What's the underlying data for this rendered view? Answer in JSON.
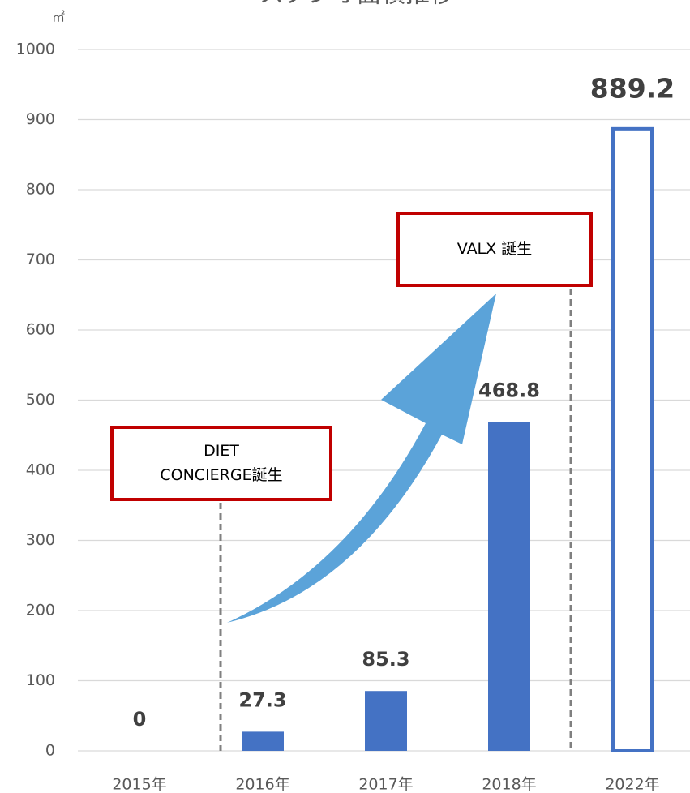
{
  "chart_data": {
    "type": "bar",
    "title": "スタジオ面積推移",
    "y_unit": "㎡",
    "categories": [
      "2015年",
      "2016年",
      "2017年",
      "2018年",
      "2022年"
    ],
    "values": [
      0,
      27.3,
      85.3,
      468.8,
      889.2
    ],
    "color": "#4472c4",
    "bar_styles": [
      "solid",
      "solid",
      "solid",
      "solid",
      "outline"
    ],
    "ylim": [
      0,
      1000
    ],
    "yticks": [
      0,
      100,
      200,
      300,
      400,
      500,
      600,
      700,
      800,
      900,
      1000
    ],
    "grid": true,
    "annotations": [
      {
        "lines": [
          "DIET",
          "CONCIERGE誕生"
        ],
        "between": [
          0,
          1
        ]
      },
      {
        "lines": [
          "VALX 誕生"
        ],
        "between": [
          3,
          4
        ]
      }
    ]
  }
}
